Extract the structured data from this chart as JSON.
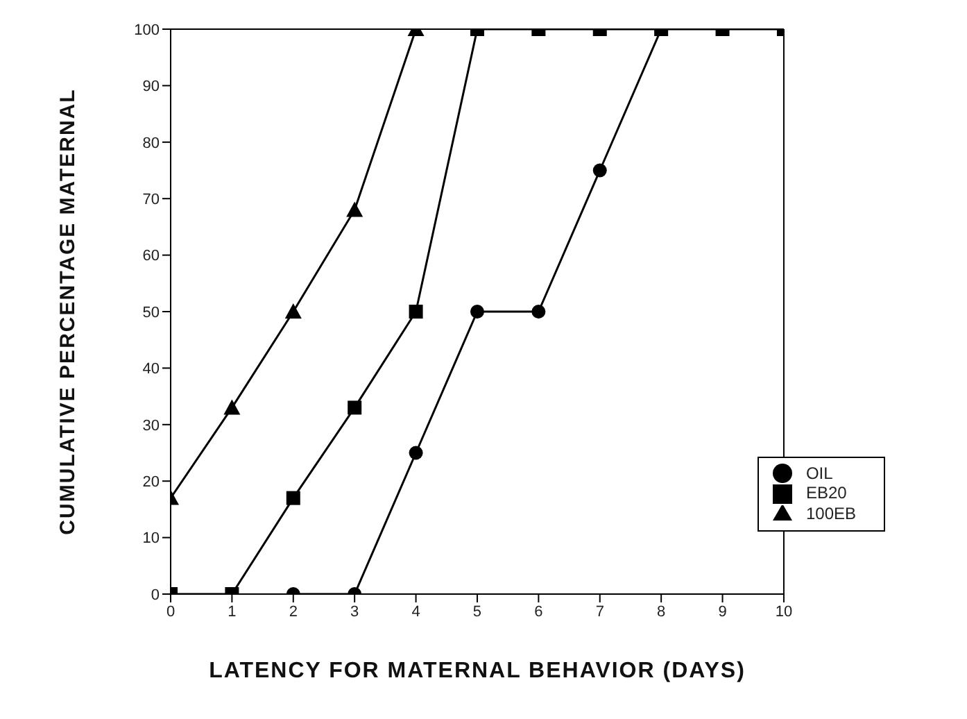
{
  "chart_data": {
    "type": "line",
    "xlabel": "LATENCY FOR MATERNAL BEHAVIOR (DAYS)",
    "ylabel": "CUMULATIVE PERCENTAGE MATERNAL",
    "x": [
      0,
      1,
      2,
      3,
      4,
      5,
      6,
      7,
      8,
      9,
      10
    ],
    "series": [
      {
        "name": "OIL",
        "color": "#000000",
        "marker": "circle",
        "values": [
          null,
          null,
          0,
          0,
          25,
          50,
          50,
          75,
          100,
          null,
          null
        ]
      },
      {
        "name": "EB20",
        "color": "#000000",
        "marker": "square",
        "values": [
          0,
          0,
          17,
          33,
          50,
          100,
          100,
          100,
          100,
          100,
          100
        ]
      },
      {
        "name": "100EB",
        "color": "#000000",
        "marker": "triangle",
        "values": [
          17,
          33,
          50,
          68,
          100,
          null,
          null,
          null,
          null,
          null,
          null
        ]
      }
    ],
    "xlim": [
      0,
      10
    ],
    "xticks": [
      0,
      1,
      2,
      3,
      4,
      5,
      6,
      7,
      8,
      9,
      10
    ],
    "ylim": [
      0,
      100
    ],
    "yticks": [
      0,
      10,
      20,
      30,
      40,
      50,
      60,
      70,
      80,
      90,
      100
    ],
    "grid": false,
    "legend": "bottom right",
    "line_style": "solid"
  }
}
